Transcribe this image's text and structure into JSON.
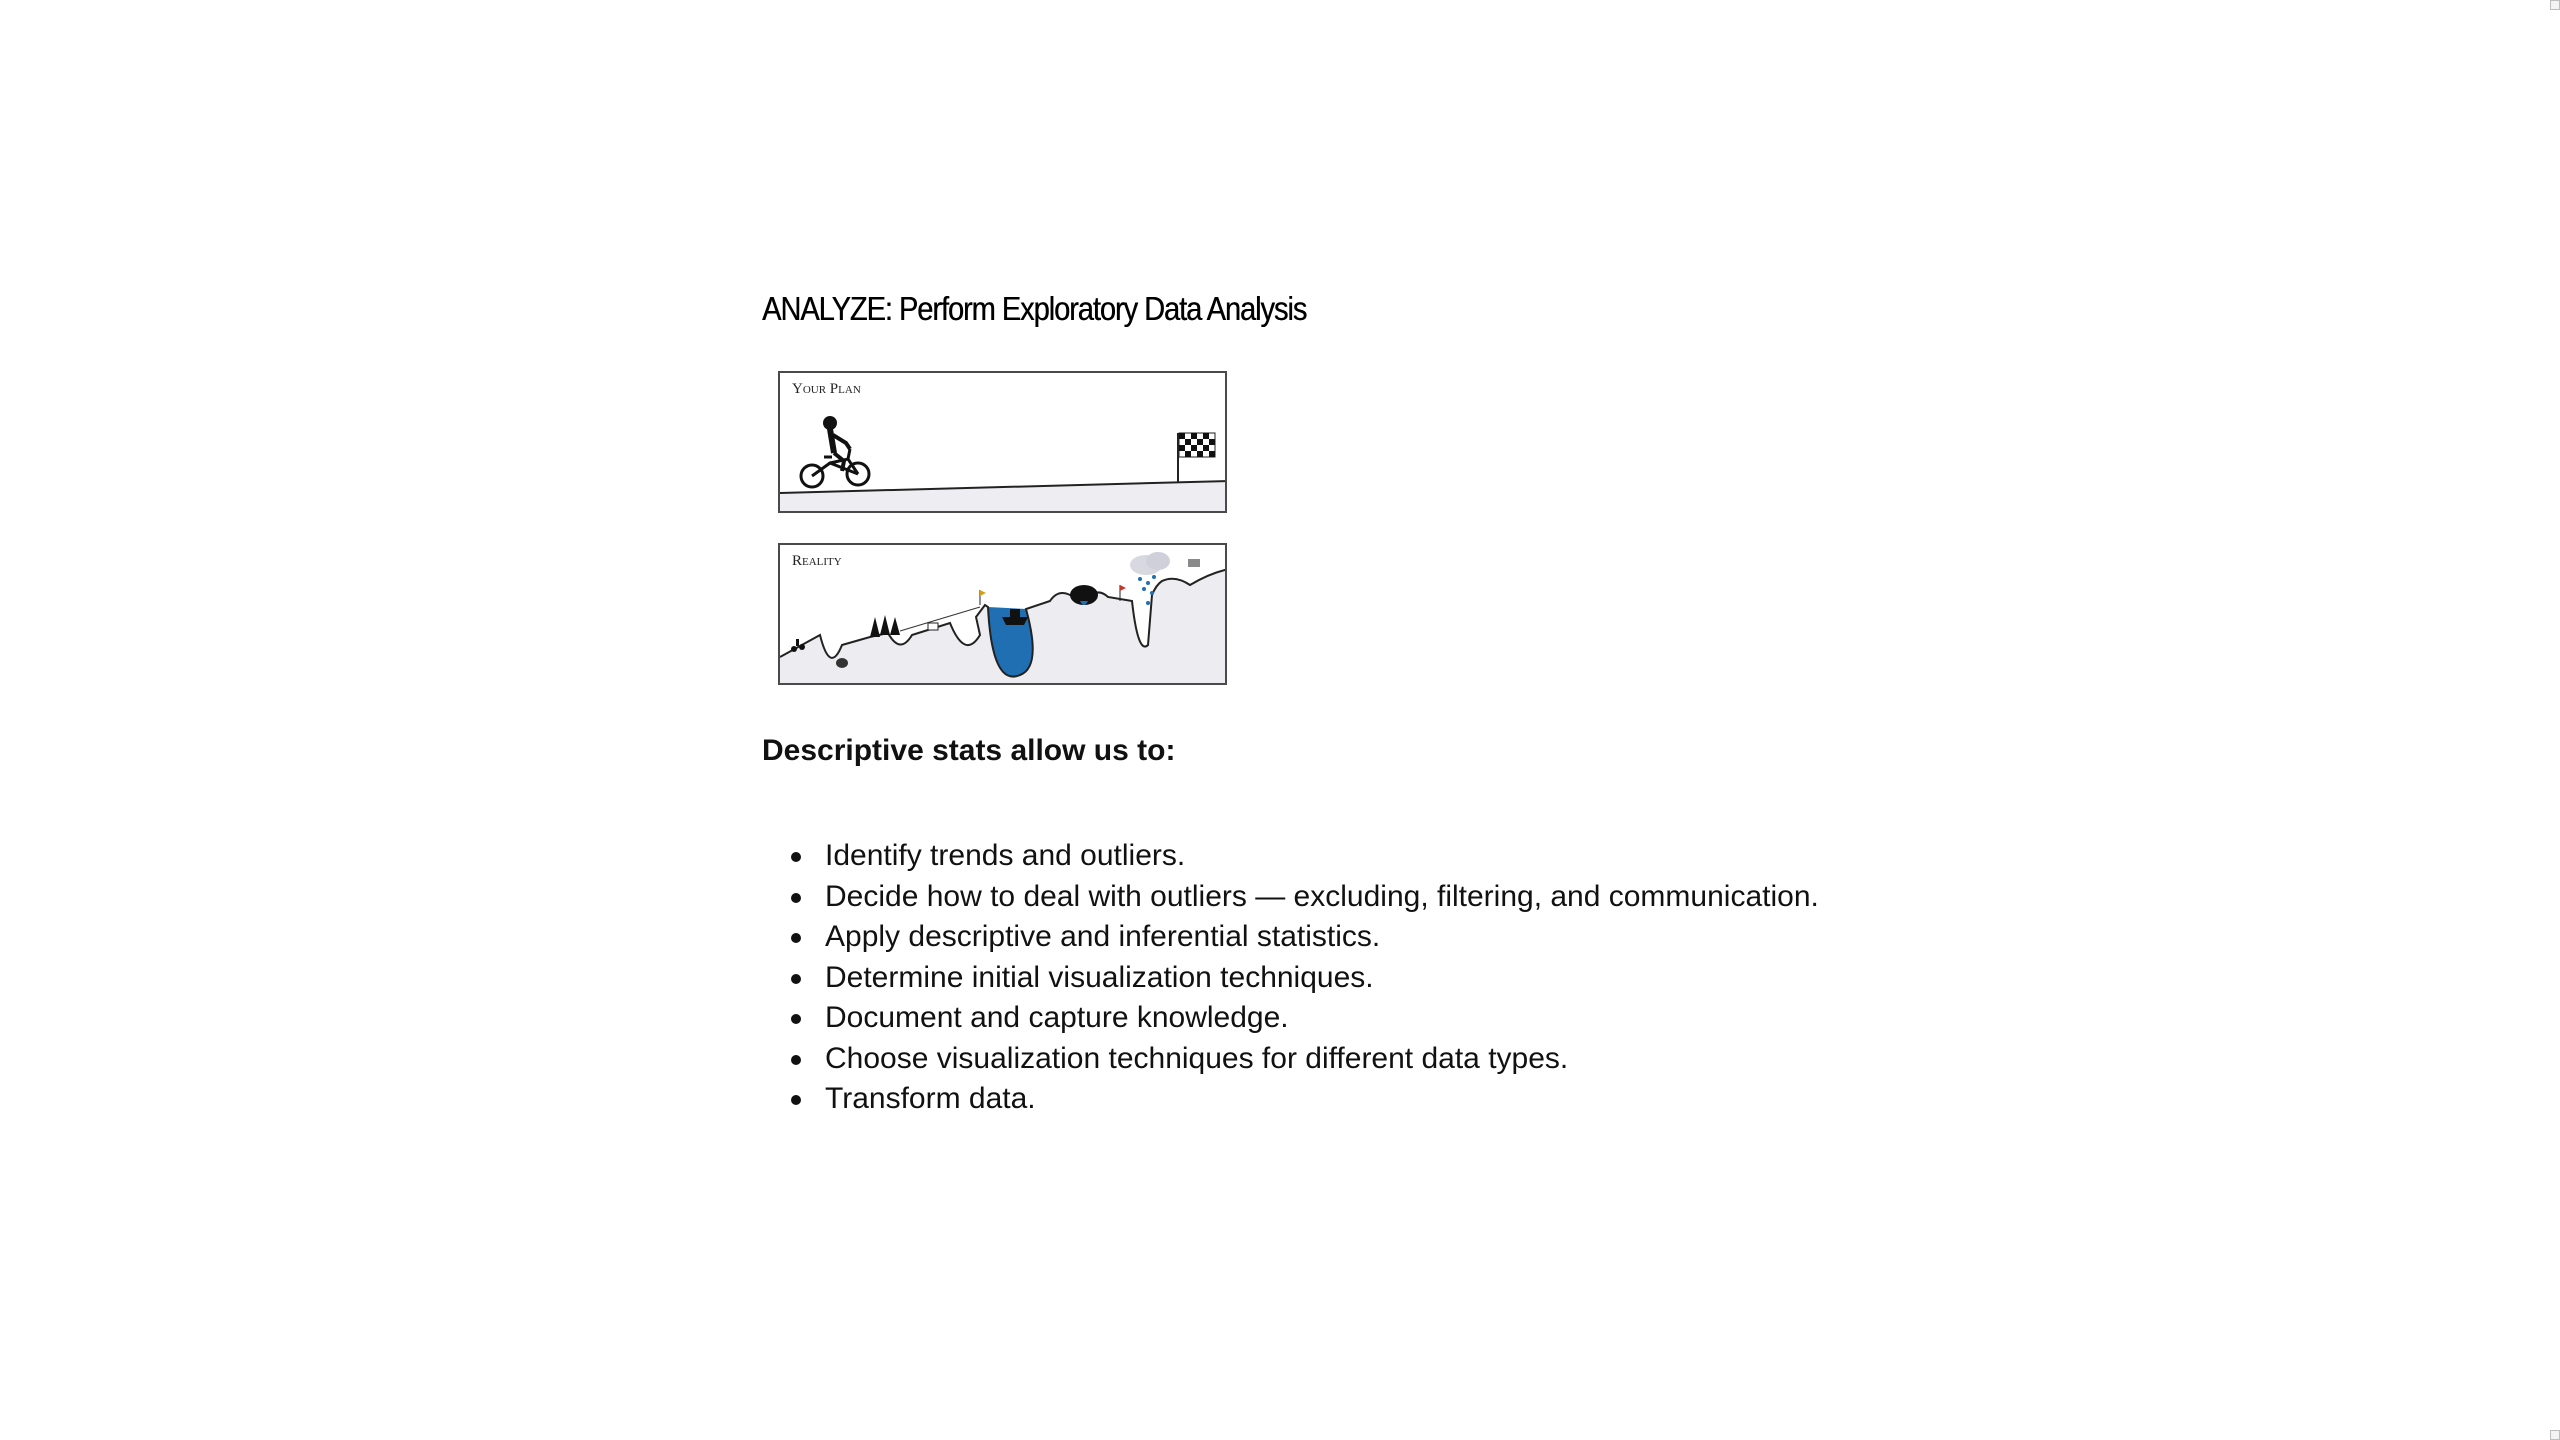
{
  "slide": {
    "title": "ANALYZE: Perform Exploratory Data Analysis",
    "illustration": {
      "plan_label": "Your Plan",
      "reality_label": "Reality",
      "water_color": "#1f6fb2"
    },
    "subheading": "Descriptive stats allow us to:",
    "bullets": [
      "Identify trends and outliers.",
      "Decide how to deal with outliers — excluding, filtering, and communication.",
      "Apply descriptive and inferential statistics.",
      "Determine initial visualization techniques.",
      "Document and capture knowledge.",
      "Choose visualization techniques for different data types.",
      "Transform data."
    ]
  }
}
